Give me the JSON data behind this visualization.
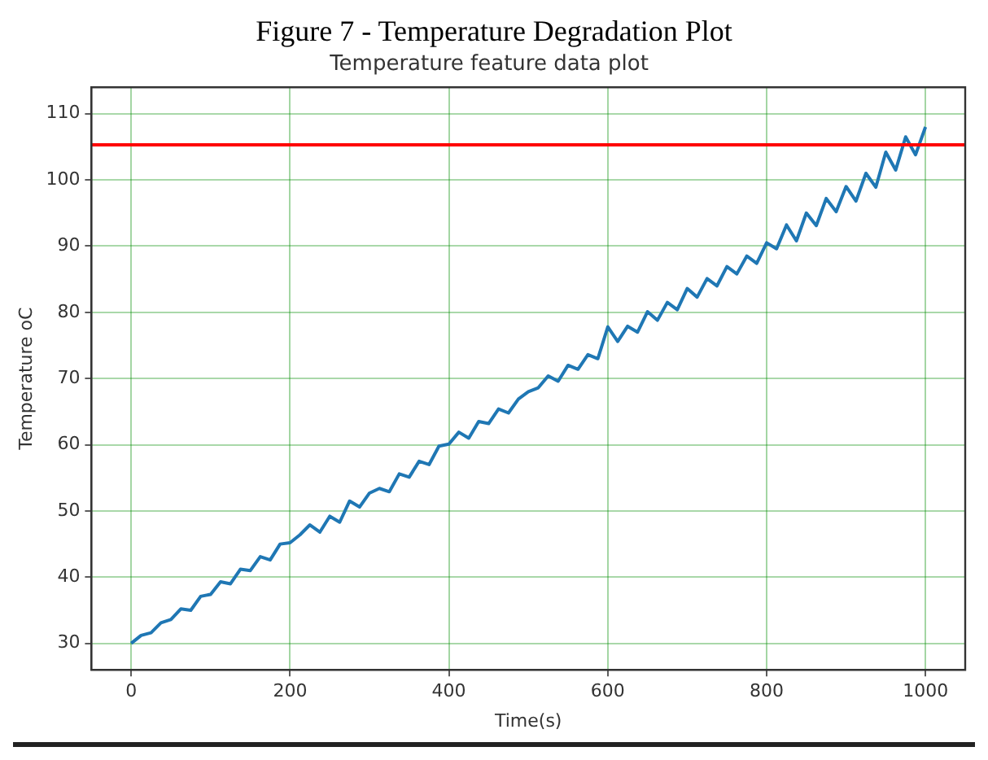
{
  "chart_data": {
    "type": "line",
    "title": "Figure 7 - Temperature Degradation Plot",
    "subtitle": "Temperature feature data plot",
    "xlabel": "Time(s)",
    "ylabel": "Temperature oC",
    "x": [
      0,
      12.5,
      25,
      37.5,
      50,
      62.5,
      75,
      87.5,
      100,
      112.5,
      125,
      137.5,
      150,
      162.5,
      175,
      187.5,
      200,
      212.5,
      225,
      237.5,
      250,
      262.5,
      275,
      287.5,
      300,
      312.5,
      325,
      337.5,
      350,
      362.5,
      375,
      387.5,
      400,
      412.5,
      425,
      437.5,
      450,
      462.5,
      475,
      487.5,
      500,
      512.5,
      525,
      537.5,
      550,
      562.5,
      575,
      587.5,
      600,
      612.5,
      625,
      637.5,
      650,
      662.5,
      675,
      687.5,
      700,
      712.5,
      725,
      737.5,
      750,
      762.5,
      775,
      787.5,
      800,
      812.5,
      825,
      837.5,
      850,
      862.5,
      875,
      887.5,
      900,
      912.5,
      925,
      937.5,
      950,
      962.5,
      975,
      987.5,
      1000
    ],
    "series": [
      {
        "color": "#1f77b4",
        "values": [
          30.0,
          31.2,
          31.6,
          33.1,
          33.6,
          35.2,
          35.0,
          37.1,
          37.4,
          39.3,
          39.0,
          41.2,
          41.0,
          43.1,
          42.6,
          45.0,
          45.2,
          46.4,
          47.9,
          46.8,
          49.2,
          48.3,
          51.5,
          50.6,
          52.7,
          53.4,
          52.9,
          55.6,
          55.1,
          57.5,
          57.0,
          59.8,
          60.1,
          61.9,
          61.0,
          63.5,
          63.2,
          65.4,
          64.8,
          66.9,
          68.0,
          68.6,
          70.4,
          69.6,
          72.0,
          71.4,
          73.6,
          73.0,
          77.8,
          75.6,
          77.9,
          77.0,
          80.1,
          78.8,
          81.5,
          80.4,
          83.6,
          82.3,
          85.1,
          84.0,
          86.9,
          85.8,
          88.5,
          87.4,
          90.5,
          89.6,
          93.2,
          90.8,
          95.0,
          93.1,
          97.2,
          95.2,
          99.0,
          96.8,
          101.0,
          98.9,
          104.2,
          101.5,
          106.5,
          103.8,
          108.0
        ]
      }
    ],
    "xlim": [
      -50,
      1050
    ],
    "xticks": [
      0,
      200,
      400,
      600,
      800,
      1000
    ],
    "ylim": [
      26,
      114
    ],
    "yticks": [
      30,
      40,
      50,
      60,
      70,
      80,
      90,
      100,
      110
    ],
    "ref_lines": [
      {
        "axis": "y",
        "value": 105.3,
        "color": "#ff0000"
      }
    ],
    "grid": true,
    "legend": false,
    "marker": "none",
    "line_style": "solid"
  }
}
